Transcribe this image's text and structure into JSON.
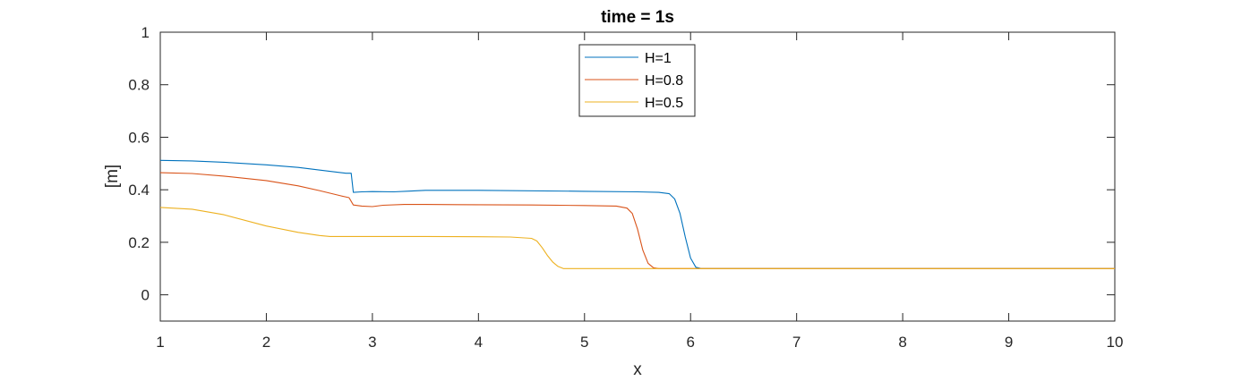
{
  "chart_data": {
    "type": "line",
    "title": "time = 1s",
    "xlabel": "x",
    "ylabel": "[m]",
    "xlim": [
      1,
      10
    ],
    "ylim": [
      -0.1,
      1
    ],
    "xticks": [
      1,
      2,
      3,
      4,
      5,
      6,
      7,
      8,
      9,
      10
    ],
    "yticks": [
      0,
      0.2,
      0.4,
      0.6,
      0.8,
      1
    ],
    "grid": false,
    "legend_position": "top-center",
    "series": [
      {
        "name": "H=1",
        "color": "#0072BD",
        "x": [
          1.0,
          1.3,
          1.6,
          2.0,
          2.3,
          2.6,
          2.75,
          2.8,
          2.82,
          2.9,
          3.0,
          3.2,
          3.35,
          3.5,
          4.0,
          5.0,
          5.5,
          5.7,
          5.8,
          5.85,
          5.9,
          5.95,
          6.0,
          6.05,
          6.1,
          7.0,
          8.0,
          9.0,
          10.0
        ],
        "y": [
          0.512,
          0.51,
          0.505,
          0.495,
          0.485,
          0.47,
          0.463,
          0.463,
          0.39,
          0.392,
          0.393,
          0.392,
          0.395,
          0.398,
          0.398,
          0.394,
          0.392,
          0.39,
          0.385,
          0.365,
          0.31,
          0.22,
          0.14,
          0.105,
          0.1,
          0.1,
          0.1,
          0.1,
          0.1
        ]
      },
      {
        "name": "H=0.8",
        "color": "#D95319",
        "x": [
          1.0,
          1.3,
          1.6,
          2.0,
          2.3,
          2.5,
          2.7,
          2.78,
          2.82,
          2.9,
          3.0,
          3.1,
          3.3,
          3.5,
          4.0,
          4.5,
          5.0,
          5.3,
          5.4,
          5.45,
          5.5,
          5.55,
          5.6,
          5.65,
          5.7,
          6.0,
          7.0,
          8.0,
          9.0,
          10.0
        ],
        "y": [
          0.465,
          0.462,
          0.452,
          0.435,
          0.415,
          0.397,
          0.377,
          0.37,
          0.342,
          0.338,
          0.336,
          0.341,
          0.344,
          0.344,
          0.343,
          0.342,
          0.34,
          0.338,
          0.33,
          0.31,
          0.25,
          0.17,
          0.12,
          0.103,
          0.1,
          0.1,
          0.1,
          0.1,
          0.1,
          0.1
        ]
      },
      {
        "name": "H=0.5",
        "color": "#EDB120",
        "x": [
          1.0,
          1.3,
          1.6,
          2.0,
          2.3,
          2.5,
          2.6,
          3.0,
          3.5,
          4.0,
          4.3,
          4.5,
          4.55,
          4.6,
          4.65,
          4.7,
          4.75,
          4.8,
          4.85,
          5.0,
          6.0,
          7.0,
          8.0,
          9.0,
          10.0
        ],
        "y": [
          0.333,
          0.326,
          0.305,
          0.262,
          0.238,
          0.226,
          0.222,
          0.222,
          0.222,
          0.221,
          0.22,
          0.215,
          0.205,
          0.18,
          0.15,
          0.125,
          0.108,
          0.1,
          0.1,
          0.1,
          0.1,
          0.1,
          0.1,
          0.1,
          0.1
        ]
      }
    ]
  }
}
